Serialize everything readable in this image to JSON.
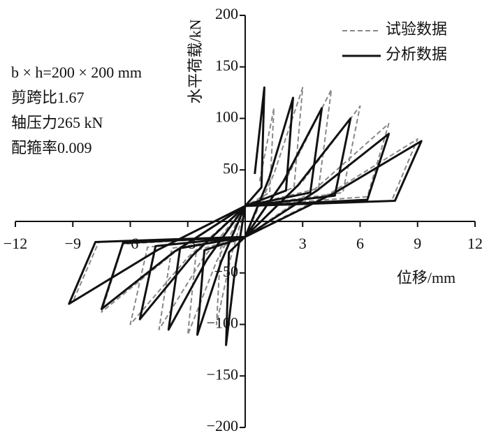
{
  "chart_data": {
    "type": "line",
    "ylabel": "水平荷载/kN",
    "xlabel": "位移/mm",
    "annotations": [
      "b × h=200 × 200 mm",
      "剪跨比1.67",
      "轴压力265 kN",
      "配箍率0.009"
    ],
    "xlim": [
      -12,
      12
    ],
    "ylim": [
      -200,
      200
    ],
    "xticks": [
      {
        "value": -12,
        "label": "−12"
      },
      {
        "value": -9,
        "label": "−9"
      },
      {
        "value": -6,
        "label": "−6"
      },
      {
        "value": -3,
        "label": "−3"
      },
      3,
      6,
      9,
      12
    ],
    "yticks": [
      {
        "value": -200,
        "label": "−200"
      },
      {
        "value": -150,
        "label": "−150"
      },
      {
        "value": -100,
        "label": "−100"
      },
      {
        "value": -50,
        "label": "−50"
      },
      50,
      100,
      150,
      200
    ],
    "legend": "upper right",
    "series": [
      {
        "name": "试验数据",
        "color": "#888888",
        "dashed": true,
        "x": [
          0.75,
          1.5,
          1.28,
          0,
          -0.75,
          -1.5,
          -1.28,
          0,
          1.5,
          3,
          2.55,
          0,
          -1.5,
          -3,
          -2.55,
          0,
          2.25,
          4.5,
          3.83,
          0,
          -2.25,
          -4.5,
          -3.83,
          0,
          3,
          6,
          5.1,
          0,
          -3,
          -6,
          -5.1,
          0,
          3.75,
          7.5,
          6.38,
          0,
          -3.75,
          -7.5,
          -6.38,
          0,
          4.5,
          9,
          7.65,
          0,
          -4.5,
          -9,
          -7.65,
          0
        ],
        "values": [
          39,
          110,
          28,
          15,
          -35,
          -100,
          -25,
          -15,
          46,
          130,
          33,
          15,
          -39,
          -110,
          -28,
          -15,
          45,
          128,
          32,
          15,
          -37,
          -105,
          -26,
          -15,
          39,
          112,
          28,
          15,
          -35,
          -100,
          -25,
          -15,
          33,
          95,
          24,
          15,
          -31,
          -88,
          -22,
          -15,
          28,
          80,
          20,
          15,
          -27,
          -78,
          -20,
          -15
        ]
      },
      {
        "name": "分析数据",
        "color": "#111111",
        "dashed": false,
        "x": [
          0.5,
          1,
          0.85,
          0,
          -0.5,
          -1,
          -0.85,
          0,
          1.25,
          2.5,
          2.13,
          0,
          -1.25,
          -2.5,
          -2.13,
          0,
          2,
          4,
          3.4,
          0,
          -2,
          -4,
          -3.4,
          0,
          2.75,
          5.5,
          4.68,
          0,
          -2.75,
          -5.5,
          -4.68,
          0,
          3.75,
          7.5,
          6.38,
          0,
          -3.75,
          -7.5,
          -6.38,
          0,
          4.6,
          9.2,
          7.82,
          0,
          -4.6,
          -9.2,
          -7.82,
          0
        ],
        "values": [
          46,
          130,
          33,
          15,
          -42,
          -120,
          -30,
          -15,
          42,
          120,
          30,
          15,
          -39,
          -110,
          -28,
          -15,
          39,
          110,
          28,
          15,
          -37,
          -105,
          -26,
          -15,
          35,
          100,
          25,
          15,
          -33,
          -95,
          -24,
          -15,
          30,
          85,
          21,
          15,
          -30,
          -85,
          -21,
          -15,
          27,
          78,
          20,
          15,
          -28,
          -80,
          -20,
          -15
        ]
      }
    ]
  }
}
